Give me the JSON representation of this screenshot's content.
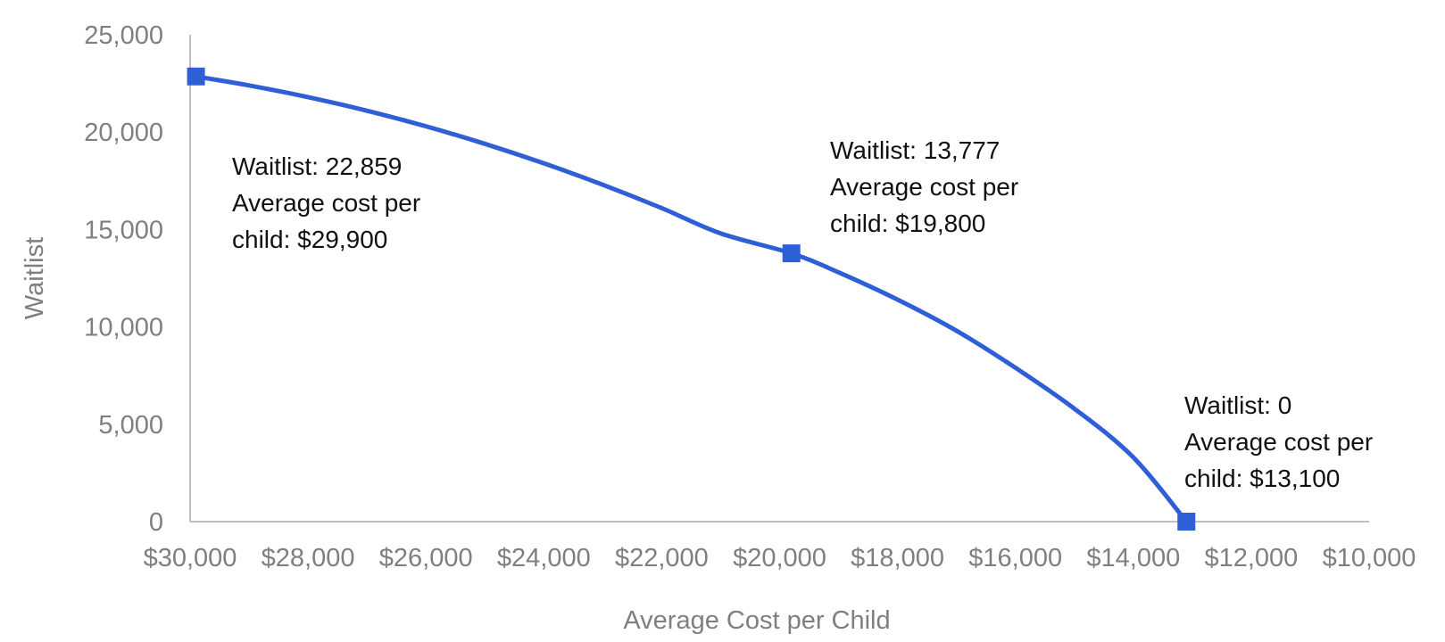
{
  "chart_data": {
    "type": "line",
    "xlabel": "Average Cost per Child",
    "ylabel": "Waitlist",
    "x_reversed": true,
    "xlim": [
      30000,
      10000
    ],
    "ylim": [
      0,
      25000
    ],
    "x_ticks": [
      "$30,000",
      "$28,000",
      "$26,000",
      "$24,000",
      "$22,000",
      "$20,000",
      "$18,000",
      "$16,000",
      "$14,000",
      "$12,000",
      "$10,000"
    ],
    "y_ticks": [
      "0",
      "5,000",
      "10,000",
      "15,000",
      "20,000",
      "25,000"
    ],
    "grid": false,
    "line_color": "#2f5fd6",
    "marker": "square",
    "series": [
      {
        "points": [
          {
            "x": 29900,
            "y": 22859
          },
          {
            "x": 29000,
            "y": 22400
          },
          {
            "x": 28000,
            "y": 21800
          },
          {
            "x": 27000,
            "y": 21100
          },
          {
            "x": 26000,
            "y": 20300
          },
          {
            "x": 25000,
            "y": 19400
          },
          {
            "x": 24000,
            "y": 18400
          },
          {
            "x": 23000,
            "y": 17300
          },
          {
            "x": 22000,
            "y": 16100
          },
          {
            "x": 21000,
            "y": 14800
          },
          {
            "x": 19800,
            "y": 13777
          },
          {
            "x": 19000,
            "y": 12800
          },
          {
            "x": 18000,
            "y": 11400
          },
          {
            "x": 17000,
            "y": 9800
          },
          {
            "x": 16000,
            "y": 7900
          },
          {
            "x": 15000,
            "y": 5800
          },
          {
            "x": 14000,
            "y": 3300
          },
          {
            "x": 13100,
            "y": 0
          }
        ],
        "markers": [
          {
            "x": 29900,
            "y": 22859
          },
          {
            "x": 19800,
            "y": 13777
          },
          {
            "x": 13100,
            "y": 0
          }
        ]
      }
    ],
    "annotations": [
      {
        "lines": [
          "Waitlist: 22,859",
          "Average cost per",
          "child: $29,900"
        ]
      },
      {
        "lines": [
          "Waitlist: 13,777",
          "Average cost per",
          "child: $19,800"
        ]
      },
      {
        "lines": [
          "Waitlist: 0",
          "Average cost per",
          "child: $13,100"
        ]
      }
    ]
  }
}
